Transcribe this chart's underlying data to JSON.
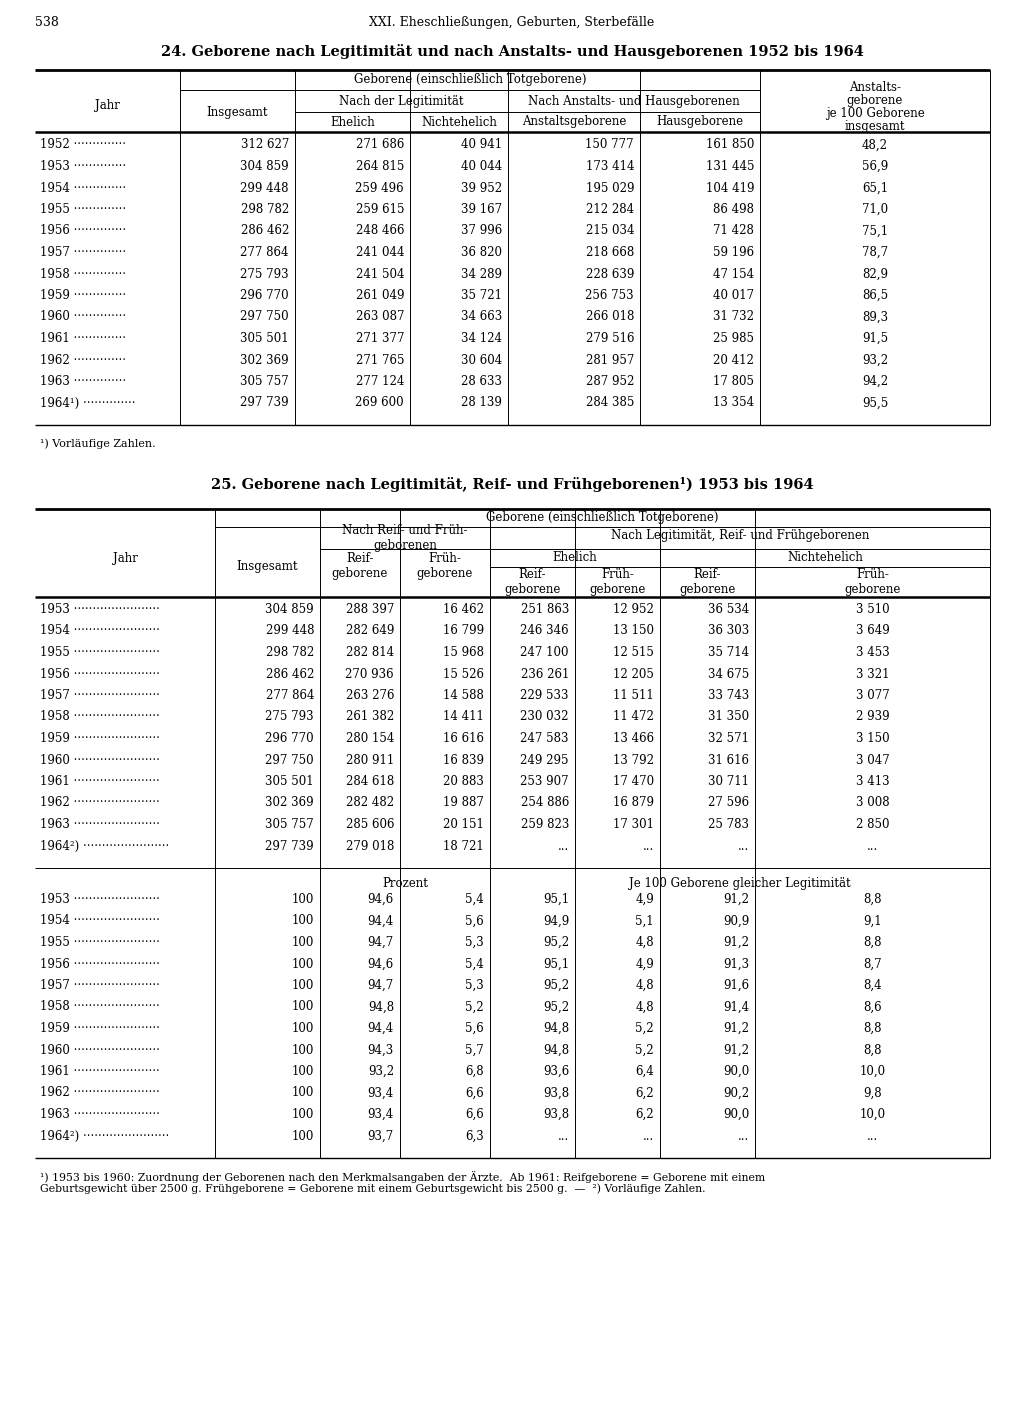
{
  "page_num": "538",
  "header": "XXI. Eheschließungen, Geburten, Sterbefälle",
  "table1_title": "24. Geborene nach Legitimität und nach Anstalts- und Hausgeborenen 1952 bis 1964",
  "table1_col_header_main": "Geborene (einschließlich Totgeborene)",
  "table1_col_header_leg": "Nach der Legitimität",
  "table1_col_header_ans": "Nach Anstalts- und Hausgeborenen",
  "table1_col_insgesamt": "Insgesamt",
  "table1_col_ehelich": "Ehelich",
  "table1_col_nichtehelich": "Nichtehelich",
  "table1_col_anstalts": "Anstaltsgeborene",
  "table1_col_haus": "Hausgeborene",
  "table1_col_last": [
    "Anstalts-",
    "geborene",
    "je 100 Geborene",
    "insgesamt"
  ],
  "table1_col_jahr": "Jahr",
  "table1_data": [
    [
      "1952",
      "312 627",
      "271 686",
      "40 941",
      "150 777",
      "161 850",
      "48,2"
    ],
    [
      "1953",
      "304 859",
      "264 815",
      "40 044",
      "173 414",
      "131 445",
      "56,9"
    ],
    [
      "1954",
      "299 448",
      "259 496",
      "39 952",
      "195 029",
      "104 419",
      "65,1"
    ],
    [
      "1955",
      "298 782",
      "259 615",
      "39 167",
      "212 284",
      "86 498",
      "71,0"
    ],
    [
      "1956",
      "286 462",
      "248 466",
      "37 996",
      "215 034",
      "71 428",
      "75,1"
    ],
    [
      "1957",
      "277 864",
      "241 044",
      "36 820",
      "218 668",
      "59 196",
      "78,7"
    ],
    [
      "1958",
      "275 793",
      "241 504",
      "34 289",
      "228 639",
      "47 154",
      "82,9"
    ],
    [
      "1959",
      "296 770",
      "261 049",
      "35 721",
      "256 753",
      "40 017",
      "86,5"
    ],
    [
      "1960",
      "297 750",
      "263 087",
      "34 663",
      "266 018",
      "31 732",
      "89,3"
    ],
    [
      "1961",
      "305 501",
      "271 377",
      "34 124",
      "279 516",
      "25 985",
      "91,5"
    ],
    [
      "1962",
      "302 369",
      "271 765",
      "30 604",
      "281 957",
      "20 412",
      "93,2"
    ],
    [
      "1963",
      "305 757",
      "277 124",
      "28 633",
      "287 952",
      "17 805",
      "94,2"
    ],
    [
      "1964¹)",
      "297 739",
      "269 600",
      "28 139",
      "284 385",
      "13 354",
      "95,5"
    ]
  ],
  "table1_footnote": "¹) Vorläufige Zahlen.",
  "table2_title": "25. Geborene nach Legitimität, Reif- und Frühgeborenen¹) 1953 bis 1964",
  "table2_col_header_main": "Geborene (einschließlich Totgeborene)",
  "table2_col_header_reif": "Nach Reif- und Früh-\ngeborenen",
  "table2_col_header_leg": "Nach Legitimität, Reif- und Frühgeborenen",
  "table2_col_ehelich": "Ehelich",
  "table2_col_nichtehelich": "Nichtehelich",
  "table2_col_jahr": "Jahr",
  "table2_col_insgesamt": "Insgesamt",
  "table2_col_reif": "Reif-\ngeborene",
  "table2_col_frueh": "Früh-\ngeborene",
  "table2_data_abs": [
    [
      "1953",
      "304 859",
      "288 397",
      "16 462",
      "251 863",
      "12 952",
      "36 534",
      "3 510"
    ],
    [
      "1954",
      "299 448",
      "282 649",
      "16 799",
      "246 346",
      "13 150",
      "36 303",
      "3 649"
    ],
    [
      "1955",
      "298 782",
      "282 814",
      "15 968",
      "247 100",
      "12 515",
      "35 714",
      "3 453"
    ],
    [
      "1956",
      "286 462",
      "270 936",
      "15 526",
      "236 261",
      "12 205",
      "34 675",
      "3 321"
    ],
    [
      "1957",
      "277 864",
      "263 276",
      "14 588",
      "229 533",
      "11 511",
      "33 743",
      "3 077"
    ],
    [
      "1958",
      "275 793",
      "261 382",
      "14 411",
      "230 032",
      "11 472",
      "31 350",
      "2 939"
    ],
    [
      "1959",
      "296 770",
      "280 154",
      "16 616",
      "247 583",
      "13 466",
      "32 571",
      "3 150"
    ],
    [
      "1960",
      "297 750",
      "280 911",
      "16 839",
      "249 295",
      "13 792",
      "31 616",
      "3 047"
    ],
    [
      "1961",
      "305 501",
      "284 618",
      "20 883",
      "253 907",
      "17 470",
      "30 711",
      "3 413"
    ],
    [
      "1962",
      "302 369",
      "282 482",
      "19 887",
      "254 886",
      "16 879",
      "27 596",
      "3 008"
    ],
    [
      "1963",
      "305 757",
      "285 606",
      "20 151",
      "259 823",
      "17 301",
      "25 783",
      "2 850"
    ],
    [
      "1964²)",
      "297 739",
      "279 018",
      "18 721",
      "...",
      "...",
      "...",
      "..."
    ]
  ],
  "table2_data_pct": [
    [
      "1953",
      "100",
      "94,6",
      "5,4",
      "95,1",
      "4,9",
      "91,2",
      "8,8"
    ],
    [
      "1954",
      "100",
      "94,4",
      "5,6",
      "94,9",
      "5,1",
      "90,9",
      "9,1"
    ],
    [
      "1955",
      "100",
      "94,7",
      "5,3",
      "95,2",
      "4,8",
      "91,2",
      "8,8"
    ],
    [
      "1956",
      "100",
      "94,6",
      "5,4",
      "95,1",
      "4,9",
      "91,3",
      "8,7"
    ],
    [
      "1957",
      "100",
      "94,7",
      "5,3",
      "95,2",
      "4,8",
      "91,6",
      "8,4"
    ],
    [
      "1958",
      "100",
      "94,8",
      "5,2",
      "95,2",
      "4,8",
      "91,4",
      "8,6"
    ],
    [
      "1959",
      "100",
      "94,4",
      "5,6",
      "94,8",
      "5,2",
      "91,2",
      "8,8"
    ],
    [
      "1960",
      "100",
      "94,3",
      "5,7",
      "94,8",
      "5,2",
      "91,2",
      "8,8"
    ],
    [
      "1961",
      "100",
      "93,2",
      "6,8",
      "93,6",
      "6,4",
      "90,0",
      "10,0"
    ],
    [
      "1962",
      "100",
      "93,4",
      "6,6",
      "93,8",
      "6,2",
      "90,2",
      "9,8"
    ],
    [
      "1963",
      "100",
      "93,4",
      "6,6",
      "93,8",
      "6,2",
      "90,0",
      "10,0"
    ],
    [
      "1964²)",
      "100",
      "93,7",
      "6,3",
      "...",
      "...",
      "...",
      "..."
    ]
  ],
  "table2_pct_label": "Prozent",
  "table2_per100_label": "Je 100 Geborene gleicher Legitimität",
  "table2_footnote_line1": "¹) 1953 bis 1960: Zuordnung der Geborenen nach den Merkmalsangaben der Ärzte.  Ab 1961: Reifgeborene = Geborene mit einem",
  "table2_footnote_line2": "Geburtsgewicht über 2500 g. Frühgeborene = Geborene mit einem Geburtsgewicht bis 2500 g.  —  ²) Vorläufige Zahlen."
}
